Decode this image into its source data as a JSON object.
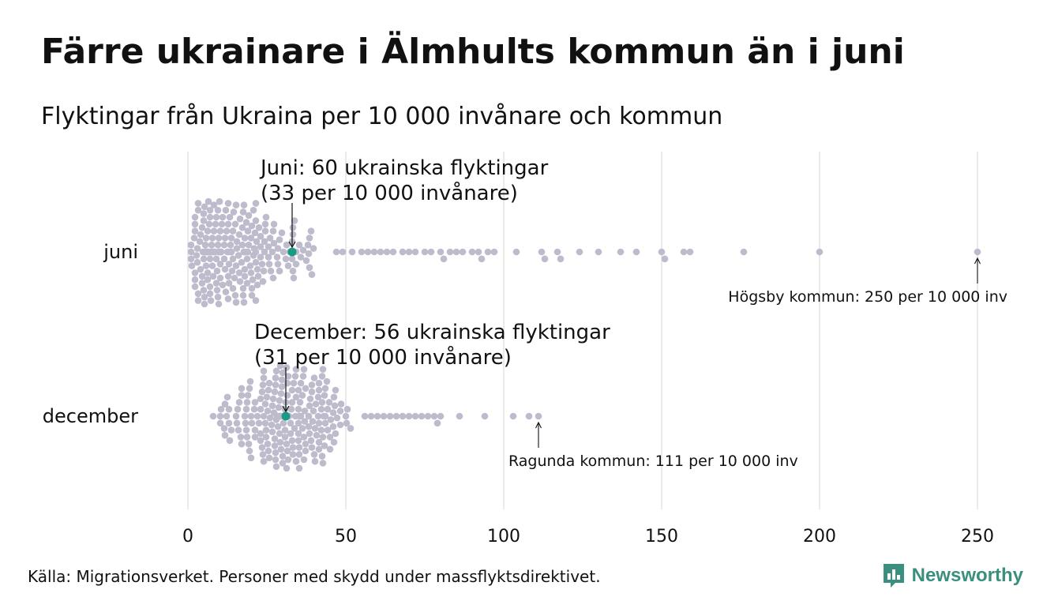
{
  "title": "Färre ukrainare i Älmhults kommun än i juni",
  "subtitle": "Flyktingar från Ukraina per 10 000 invånare och kommun",
  "source": "Källa: Migrationsverket. Personer med skydd under massflyktsdirektivet.",
  "brand": {
    "name": "Newsworthy",
    "icon": "newsworthy-logo-icon",
    "color": "#3a8f7e"
  },
  "colors": {
    "dots": "#bdbbcc",
    "highlight": "#1a9a85",
    "grid": "#d4d4d4",
    "text": "#111111"
  },
  "chart_data": {
    "type": "scatter",
    "subtype": "beeswarm",
    "x_ticks": [
      0,
      50,
      100,
      150,
      200,
      250
    ],
    "xlim": [
      0,
      260
    ],
    "grid": "vertical",
    "rows": [
      {
        "name": "juni",
        "highlight": {
          "value": 33,
          "label_lines": [
            "Juni: 60 ukrainska flyktingar",
            "(33 per 10 000 invånare)"
          ]
        },
        "max_annotation": {
          "value": 250,
          "label": "Högsby kommun: 250 per 10 000 inv"
        },
        "sparse_values": [
          47,
          49,
          52,
          55,
          57,
          59,
          61,
          63,
          65,
          68,
          70,
          72,
          75,
          77,
          80,
          81,
          83,
          85,
          87,
          90,
          92,
          93,
          95,
          97,
          104,
          112,
          113,
          117,
          118,
          124,
          130,
          137,
          142,
          150,
          151,
          157,
          159,
          176,
          200,
          250
        ],
        "dense_distribution": {
          "min": 0,
          "peak": 8,
          "end": 46,
          "count": 250
        }
      },
      {
        "name": "december",
        "highlight": {
          "value": 31,
          "label_lines": [
            "December: 56 ukrainska flyktingar",
            "(31 per 10 000 invånare)"
          ]
        },
        "max_annotation": {
          "value": 111,
          "label": "Ragunda kommun: 111 per 10 000 inv"
        },
        "sparse_values": [
          56,
          58,
          60,
          62,
          64,
          66,
          68,
          70,
          72,
          74,
          76,
          78,
          79,
          80,
          86,
          94,
          103,
          108,
          111
        ],
        "dense_distribution": {
          "min": 4,
          "peak": 28,
          "end": 54,
          "count": 230
        }
      }
    ]
  }
}
